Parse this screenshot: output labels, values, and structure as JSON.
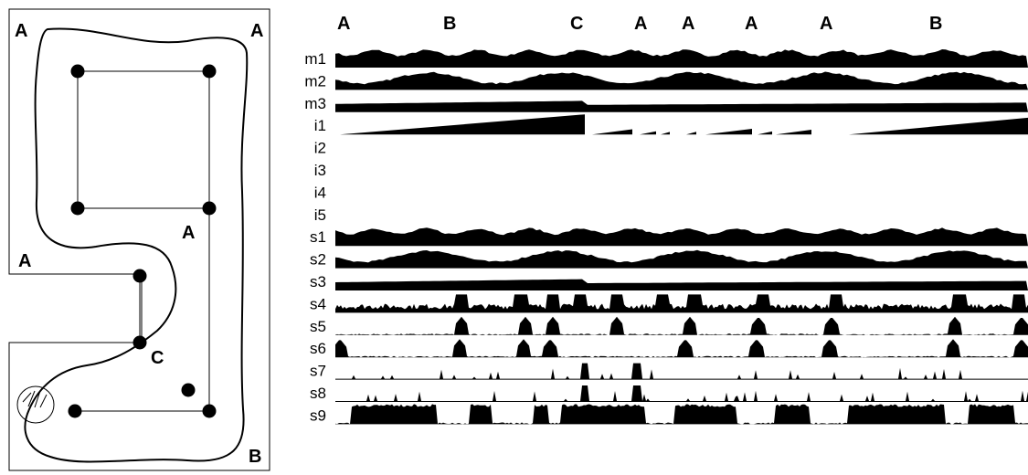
{
  "map": {
    "corner_labels": [
      "A",
      "A",
      "A",
      "A",
      "C",
      "B"
    ]
  },
  "top_labels": [
    "A",
    "B",
    "C",
    "A",
    "A",
    "A",
    "A",
    "B"
  ],
  "rows": [
    {
      "label": "m1",
      "kind": "band"
    },
    {
      "label": "m2",
      "kind": "wave"
    },
    {
      "label": "m3",
      "kind": "ramp_band"
    },
    {
      "label": "i1",
      "kind": "ramps"
    },
    {
      "label": "i2",
      "kind": "empty"
    },
    {
      "label": "i3",
      "kind": "empty"
    },
    {
      "label": "i4",
      "kind": "empty"
    },
    {
      "label": "i5",
      "kind": "empty"
    },
    {
      "label": "s1",
      "kind": "band"
    },
    {
      "label": "s2",
      "kind": "wave"
    },
    {
      "label": "s3",
      "kind": "ramp_band"
    },
    {
      "label": "s4",
      "kind": "noisy"
    },
    {
      "label": "s5",
      "kind": "peaks"
    },
    {
      "label": "s6",
      "kind": "peaks"
    },
    {
      "label": "s7",
      "kind": "spikes"
    },
    {
      "label": "s8",
      "kind": "spikes"
    },
    {
      "label": "s9",
      "kind": "blocks"
    }
  ]
}
